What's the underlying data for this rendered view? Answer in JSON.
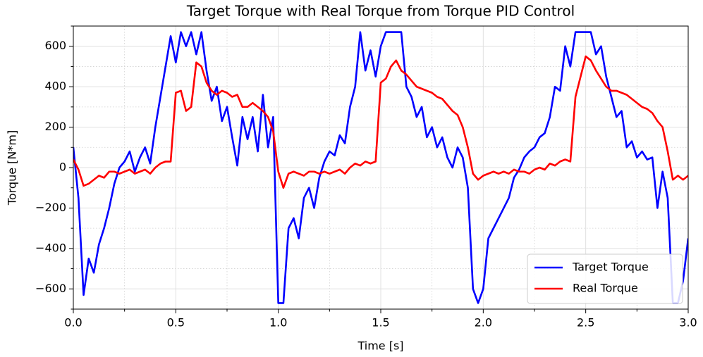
{
  "chart_data": {
    "type": "line",
    "title": "Target Torque with Real Torque from Torque PID Control",
    "xlabel": "Time [s]",
    "ylabel": "Torque [N*m]",
    "x": [
      0,
      0.025,
      0.05,
      0.075,
      0.1,
      0.125,
      0.15,
      0.175,
      0.2,
      0.225,
      0.25,
      0.275,
      0.3,
      0.325,
      0.35,
      0.375,
      0.4,
      0.425,
      0.45,
      0.475,
      0.5,
      0.525,
      0.55,
      0.575,
      0.6,
      0.625,
      0.65,
      0.675,
      0.7,
      0.725,
      0.75,
      0.775,
      0.8,
      0.825,
      0.85,
      0.875,
      0.9,
      0.925,
      0.95,
      0.975,
      1,
      1.025,
      1.05,
      1.075,
      1.1,
      1.125,
      1.15,
      1.175,
      1.2,
      1.225,
      1.25,
      1.275,
      1.3,
      1.325,
      1.35,
      1.375,
      1.4,
      1.425,
      1.45,
      1.475,
      1.5,
      1.525,
      1.55,
      1.575,
      1.6,
      1.625,
      1.65,
      1.675,
      1.7,
      1.725,
      1.75,
      1.775,
      1.8,
      1.825,
      1.85,
      1.875,
      1.9,
      1.925,
      1.95,
      1.975,
      2,
      2.025,
      2.05,
      2.075,
      2.1,
      2.125,
      2.15,
      2.175,
      2.2,
      2.225,
      2.25,
      2.275,
      2.3,
      2.325,
      2.35,
      2.375,
      2.4,
      2.425,
      2.45,
      2.475,
      2.5,
      2.525,
      2.55,
      2.575,
      2.6,
      2.625,
      2.65,
      2.675,
      2.7,
      2.725,
      2.75,
      2.775,
      2.8,
      2.825,
      2.85,
      2.875,
      2.9,
      2.925,
      2.95,
      2.975,
      3
    ],
    "series": [
      {
        "name": "Target Torque",
        "color": "#0000ff",
        "values": [
          100,
          -150,
          -630,
          -450,
          -520,
          -380,
          -300,
          -200,
          -80,
          0,
          30,
          80,
          -20,
          50,
          100,
          20,
          200,
          350,
          500,
          650,
          520,
          670,
          600,
          670,
          560,
          670,
          480,
          330,
          400,
          230,
          300,
          150,
          10,
          250,
          140,
          250,
          80,
          360,
          100,
          250,
          -670,
          -670,
          -300,
          -250,
          -350,
          -150,
          -100,
          -200,
          -50,
          30,
          80,
          60,
          160,
          120,
          300,
          400,
          670,
          480,
          580,
          450,
          600,
          670,
          670,
          670,
          670,
          400,
          350,
          250,
          300,
          150,
          200,
          100,
          150,
          50,
          0,
          100,
          50,
          -100,
          -600,
          -670,
          -600,
          -350,
          -300,
          -250,
          -200,
          -150,
          -50,
          -10,
          50,
          80,
          100,
          150,
          170,
          250,
          400,
          380,
          600,
          500,
          670,
          670,
          670,
          670,
          560,
          600,
          450,
          350,
          250,
          280,
          100,
          130,
          50,
          80,
          40,
          50,
          -200,
          -20,
          -150,
          -670,
          -670,
          -560,
          -350
        ]
      },
      {
        "name": "Real Torque",
        "color": "#ff0000",
        "values": [
          40,
          -10,
          -90,
          -80,
          -60,
          -40,
          -50,
          -20,
          -20,
          -30,
          -20,
          -10,
          -30,
          -20,
          -10,
          -30,
          0,
          20,
          30,
          30,
          370,
          380,
          280,
          300,
          520,
          500,
          420,
          380,
          360,
          380,
          370,
          350,
          360,
          300,
          300,
          320,
          300,
          280,
          250,
          180,
          -20,
          -100,
          -30,
          -20,
          -30,
          -40,
          -20,
          -20,
          -30,
          -20,
          -30,
          -20,
          -10,
          -30,
          0,
          20,
          10,
          30,
          20,
          30,
          420,
          440,
          500,
          530,
          480,
          460,
          430,
          400,
          390,
          380,
          370,
          350,
          340,
          310,
          280,
          260,
          200,
          100,
          -30,
          -60,
          -40,
          -30,
          -20,
          -30,
          -20,
          -30,
          -10,
          -20,
          -20,
          -30,
          -10,
          0,
          -10,
          20,
          10,
          30,
          40,
          30,
          350,
          450,
          550,
          530,
          480,
          440,
          400,
          380,
          380,
          370,
          360,
          340,
          320,
          300,
          290,
          270,
          230,
          200,
          80,
          -60,
          -40,
          -60,
          -40
        ]
      }
    ],
    "xlim": [
      0,
      3
    ],
    "ylim": [
      -700,
      700
    ],
    "xticks": [
      {
        "value": 0,
        "label": "0.0"
      },
      {
        "value": 0.5,
        "label": "0.5"
      },
      {
        "value": 1,
        "label": "1.0"
      },
      {
        "value": 1.5,
        "label": "1.5"
      },
      {
        "value": 2,
        "label": "2.0"
      },
      {
        "value": 2.5,
        "label": "2.5"
      },
      {
        "value": 3,
        "label": "3.0"
      }
    ],
    "yticks": [
      {
        "value": -600,
        "label": "−600"
      },
      {
        "value": -400,
        "label": "−400"
      },
      {
        "value": -200,
        "label": "−200"
      },
      0,
      200,
      400,
      600
    ],
    "xminorticks": [
      0.25,
      0.75,
      1.25,
      1.75,
      2.25,
      2.75
    ],
    "yminorticks": [
      -700,
      -500,
      -300,
      -100,
      100,
      300,
      500,
      700
    ],
    "grid": true,
    "legend": "lower right"
  }
}
